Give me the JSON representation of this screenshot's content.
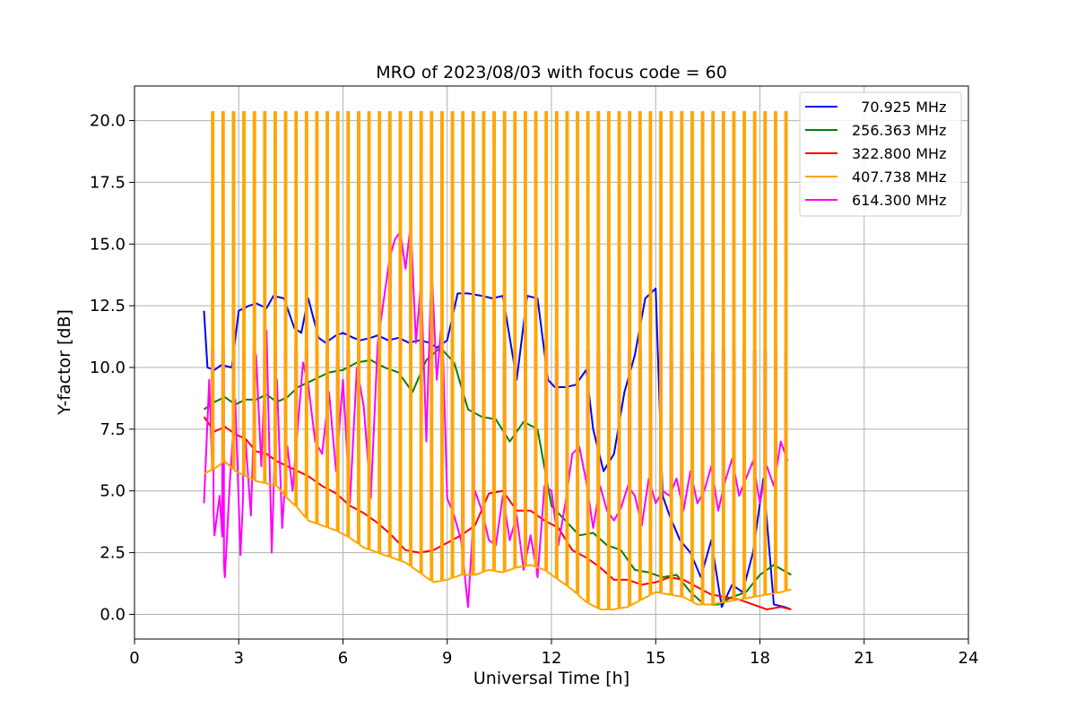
{
  "chart_data": {
    "type": "line",
    "title": "MRO of 2023/08/03 with focus code = 60",
    "xlabel": "Universal Time [h]",
    "ylabel": "Y-factor [dB]",
    "xlim": [
      0,
      24
    ],
    "ylim": [
      -1.0,
      21.4
    ],
    "xticks": [
      0,
      3,
      6,
      9,
      12,
      15,
      18,
      21,
      24
    ],
    "xtick_labels": [
      "0",
      "3",
      "6",
      "9",
      "12",
      "15",
      "18",
      "21",
      "24"
    ],
    "yticks": [
      0.0,
      2.5,
      5.0,
      7.5,
      10.0,
      12.5,
      15.0,
      17.5,
      20.0
    ],
    "ytick_labels": [
      "0.0",
      "2.5",
      "5.0",
      "7.5",
      "10.0",
      "12.5",
      "15.0",
      "17.5",
      "20.0"
    ],
    "grid": true,
    "legend_position": "top-right",
    "spikes": {
      "start": 2.25,
      "end": 18.75,
      "step": 0.3,
      "width": 0.05,
      "orange_top": 20.35,
      "magenta_top": 10.7
    },
    "series": [
      {
        "name": "  70.925 MHz",
        "color": "#0000ff",
        "x": [
          2.0,
          2.1,
          2.3,
          2.5,
          2.8,
          3.0,
          3.3,
          3.5,
          3.8,
          4.0,
          4.3,
          4.6,
          4.8,
          5.0,
          5.3,
          5.5,
          5.8,
          6.0,
          6.3,
          6.5,
          6.8,
          7.0,
          7.3,
          7.6,
          7.9,
          8.2,
          8.5,
          8.7,
          9.0,
          9.3,
          9.6,
          10.0,
          10.3,
          10.6,
          11.0,
          11.3,
          11.6,
          11.9,
          12.1,
          12.4,
          12.7,
          13.0,
          13.2,
          13.5,
          13.8,
          14.1,
          14.4,
          14.7,
          15.0,
          15.2,
          15.4,
          15.7,
          16.0,
          16.3,
          16.6,
          16.9,
          17.2,
          17.5,
          17.8,
          18.1,
          18.4,
          18.7,
          18.9
        ],
        "values": [
          12.3,
          10.0,
          9.9,
          10.1,
          10.0,
          12.3,
          12.5,
          12.6,
          12.4,
          12.9,
          12.8,
          11.6,
          11.4,
          12.8,
          11.2,
          11.0,
          11.3,
          11.4,
          11.2,
          11.1,
          11.2,
          11.3,
          11.1,
          11.2,
          11.0,
          11.1,
          11.0,
          10.8,
          11.1,
          13.0,
          13.0,
          12.9,
          12.8,
          12.9,
          9.5,
          12.9,
          12.8,
          9.5,
          9.2,
          9.2,
          9.3,
          9.9,
          7.5,
          5.8,
          6.5,
          9.0,
          10.5,
          12.8,
          13.2,
          4.8,
          4.0,
          3.0,
          2.5,
          1.5,
          3.0,
          0.3,
          1.2,
          0.9,
          2.5,
          5.5,
          0.4,
          0.3,
          0.2
        ]
      },
      {
        "name": "256.363 MHz",
        "color": "#008000",
        "x": [
          2.0,
          2.3,
          2.6,
          2.9,
          3.2,
          3.5,
          3.8,
          4.1,
          4.4,
          4.7,
          5.0,
          5.3,
          5.6,
          6.0,
          6.4,
          6.8,
          7.2,
          7.6,
          8.0,
          8.4,
          8.8,
          9.2,
          9.6,
          10.0,
          10.4,
          10.8,
          11.2,
          11.6,
          12.0,
          12.4,
          12.8,
          13.2,
          13.6,
          14.0,
          14.4,
          14.8,
          15.2,
          15.6,
          16.0,
          16.4,
          16.8,
          17.2,
          17.6,
          18.0,
          18.4,
          18.9
        ],
        "values": [
          8.3,
          8.6,
          8.8,
          8.5,
          8.7,
          8.7,
          8.9,
          8.6,
          8.8,
          9.2,
          9.4,
          9.6,
          9.8,
          9.9,
          10.2,
          10.3,
          10.0,
          9.8,
          9.0,
          10.3,
          10.8,
          10.2,
          8.3,
          8.0,
          7.9,
          7.0,
          7.8,
          7.5,
          4.4,
          3.8,
          3.2,
          3.3,
          2.8,
          2.6,
          1.8,
          1.7,
          1.5,
          1.6,
          0.9,
          0.4,
          0.4,
          0.7,
          0.9,
          1.6,
          2.0,
          1.6
        ]
      },
      {
        "name": "322.800 MHz",
        "color": "#ff0000",
        "x": [
          2.0,
          2.3,
          2.6,
          2.9,
          3.2,
          3.5,
          3.8,
          4.1,
          4.4,
          4.7,
          5.0,
          5.4,
          5.8,
          6.2,
          6.6,
          7.0,
          7.4,
          7.8,
          8.2,
          8.6,
          9.0,
          9.4,
          9.8,
          10.2,
          10.6,
          11.0,
          11.4,
          11.8,
          12.2,
          12.6,
          13.0,
          13.4,
          13.8,
          14.2,
          14.6,
          15.0,
          15.4,
          15.8,
          16.2,
          16.6,
          17.0,
          17.4,
          17.8,
          18.2,
          18.6,
          18.9
        ],
        "values": [
          8.0,
          7.4,
          7.6,
          7.3,
          7.1,
          6.6,
          6.5,
          6.2,
          6.0,
          5.8,
          5.6,
          5.2,
          4.9,
          4.4,
          4.1,
          3.7,
          3.2,
          2.6,
          2.5,
          2.6,
          2.9,
          3.2,
          3.6,
          4.9,
          5.0,
          4.2,
          4.2,
          3.8,
          3.5,
          2.6,
          2.3,
          1.9,
          1.4,
          1.4,
          1.2,
          1.3,
          1.5,
          1.4,
          1.1,
          0.8,
          0.7,
          0.6,
          0.4,
          0.2,
          0.3,
          0.2
        ]
      },
      {
        "name": "407.738 MHz",
        "color": "#ffa500",
        "x": [
          2.0,
          2.3,
          2.6,
          2.9,
          3.2,
          3.5,
          3.8,
          4.1,
          4.4,
          4.7,
          5.0,
          5.4,
          5.8,
          6.2,
          6.6,
          7.0,
          7.4,
          7.8,
          8.2,
          8.6,
          9.0,
          9.4,
          9.8,
          10.2,
          10.6,
          11.0,
          11.4,
          11.8,
          12.2,
          12.6,
          13.0,
          13.4,
          13.8,
          14.2,
          14.6,
          15.0,
          15.4,
          15.8,
          16.2,
          16.6,
          17.0,
          17.4,
          17.8,
          18.2,
          18.6,
          18.9
        ],
        "values": [
          5.7,
          5.9,
          6.2,
          5.8,
          5.6,
          5.4,
          5.3,
          5.2,
          4.7,
          4.3,
          3.8,
          3.6,
          3.4,
          3.1,
          2.7,
          2.5,
          2.3,
          2.1,
          1.7,
          1.3,
          1.4,
          1.6,
          1.6,
          1.8,
          1.7,
          1.9,
          2.0,
          1.8,
          1.4,
          1.0,
          0.5,
          0.2,
          0.2,
          0.3,
          0.6,
          0.9,
          0.8,
          0.7,
          0.4,
          0.4,
          0.5,
          0.6,
          0.7,
          0.8,
          0.9,
          1.0
        ]
      },
      {
        "name": "614.300 MHz",
        "color": "#ff00ff",
        "x": [
          2.0,
          2.15,
          2.3,
          2.45,
          2.6,
          2.75,
          2.9,
          3.05,
          3.2,
          3.35,
          3.5,
          3.65,
          3.8,
          3.95,
          4.1,
          4.25,
          4.4,
          4.55,
          4.7,
          4.85,
          5.0,
          5.2,
          5.4,
          5.6,
          5.8,
          6.0,
          6.2,
          6.4,
          6.6,
          6.8,
          7.0,
          7.2,
          7.35,
          7.5,
          7.65,
          7.8,
          7.95,
          8.1,
          8.25,
          8.4,
          8.55,
          8.7,
          8.85,
          9.0,
          9.2,
          9.4,
          9.6,
          9.8,
          10.0,
          10.2,
          10.4,
          10.6,
          10.8,
          11.0,
          11.2,
          11.4,
          11.6,
          11.8,
          12.0,
          12.2,
          12.4,
          12.6,
          12.8,
          13.0,
          13.2,
          13.4,
          13.6,
          13.8,
          14.0,
          14.2,
          14.4,
          14.6,
          14.8,
          15.0,
          15.2,
          15.4,
          15.6,
          15.8,
          16.0,
          16.2,
          16.4,
          16.6,
          16.8,
          17.0,
          17.2,
          17.4,
          17.6,
          17.8,
          18.0,
          18.2,
          18.4,
          18.6,
          18.8
        ],
        "values": [
          4.5,
          9.5,
          3.2,
          4.8,
          1.5,
          5.5,
          8.7,
          2.4,
          7.0,
          4.0,
          10.5,
          6.0,
          11.5,
          2.5,
          9.5,
          3.5,
          6.8,
          5.0,
          7.6,
          10.2,
          9.3,
          7.0,
          6.5,
          9.0,
          5.8,
          9.5,
          4.5,
          10.0,
          8.4,
          4.7,
          11.0,
          13.0,
          14.5,
          15.2,
          15.5,
          14.0,
          15.8,
          11.0,
          13.5,
          7.0,
          14.2,
          9.5,
          12.0,
          4.7,
          4.0,
          3.0,
          0.3,
          5.0,
          4.2,
          3.0,
          2.8,
          4.8,
          3.0,
          4.0,
          1.8,
          3.2,
          1.5,
          5.2,
          5.0,
          2.8,
          4.5,
          6.5,
          6.8,
          5.4,
          3.5,
          5.2,
          4.2,
          3.8,
          4.3,
          5.2,
          4.8,
          3.6,
          5.5,
          4.5,
          5.0,
          4.8,
          5.5,
          4.2,
          5.8,
          4.5,
          5.0,
          6.0,
          4.2,
          5.4,
          6.3,
          4.8,
          5.5,
          6.2,
          4.5,
          6.0,
          5.2,
          7.0,
          6.2
        ]
      }
    ]
  }
}
